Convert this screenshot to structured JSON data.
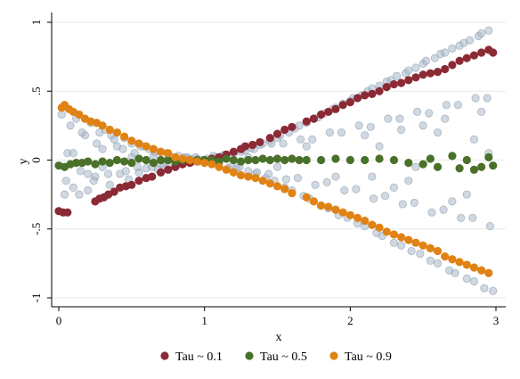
{
  "chart_data": {
    "type": "scatter",
    "title": "",
    "xlabel": "x",
    "ylabel": "y",
    "xlim": [
      0,
      3
    ],
    "ylim": [
      -1,
      1
    ],
    "x_ticks": [
      0,
      1,
      2,
      3
    ],
    "x_tick_labels": [
      "0",
      "1",
      "2",
      "3"
    ],
    "y_ticks": [
      -1,
      -0.5,
      0,
      0.5,
      1
    ],
    "y_tick_labels": [
      "-1",
      "-.5",
      "0",
      ".5",
      "1"
    ],
    "grid": "horizontal",
    "legend_position": "bottom",
    "background_points": {
      "color": "#a9b8c8",
      "x": [
        0.02,
        0.05,
        0.08,
        0.1,
        0.12,
        0.15,
        0.18,
        0.2,
        0.22,
        0.25,
        0.28,
        0.3,
        0.32,
        0.35,
        0.38,
        0.4,
        0.42,
        0.45,
        0.48,
        0.5,
        0.52,
        0.55,
        0.58,
        0.6,
        0.62,
        0.65,
        0.68,
        0.7,
        0.72,
        0.75,
        0.78,
        0.8,
        0.82,
        0.85,
        0.88,
        0.9,
        0.92,
        0.95,
        0.98,
        1.0,
        1.02,
        1.05,
        1.08,
        1.1,
        1.12,
        1.15,
        1.18,
        1.2,
        1.22,
        1.25,
        1.28,
        1.3,
        1.32,
        1.35,
        1.38,
        1.4,
        1.42,
        1.45,
        1.48,
        1.5,
        1.52,
        1.55,
        1.58,
        1.6,
        1.62,
        1.65,
        1.68,
        1.7,
        1.72,
        1.75,
        1.78,
        1.8,
        1.82,
        1.85,
        1.88,
        1.9,
        1.92,
        1.95,
        1.98,
        2.0,
        2.02,
        2.05,
        2.08,
        2.1,
        2.12,
        2.15,
        2.18,
        2.2,
        2.22,
        2.25,
        2.28,
        2.3,
        2.32,
        2.35,
        2.38,
        2.4,
        2.42,
        2.45,
        2.48,
        2.5,
        2.52,
        2.55,
        2.58,
        2.6,
        2.62,
        2.65,
        2.68,
        2.7,
        2.72,
        2.75,
        2.78,
        2.8,
        2.82,
        2.85,
        2.88,
        2.9,
        2.92,
        2.95,
        2.98,
        0.06,
        0.14,
        0.26,
        0.34,
        0.44,
        0.54,
        0.66,
        0.76,
        0.86,
        0.96,
        1.06,
        1.16,
        1.26,
        1.36,
        1.46,
        1.56,
        1.66,
        1.76,
        1.86,
        1.96,
        2.06,
        2.16,
        2.26,
        2.36,
        2.46,
        2.56,
        2.66,
        2.76,
        2.86,
        2.96,
        0.04,
        0.16,
        0.24,
        0.36,
        0.46,
        0.56,
        0.64,
        0.74,
        0.84,
        0.94,
        1.04,
        1.14,
        1.24,
        1.34,
        1.44,
        1.54,
        1.64,
        1.74,
        1.84,
        1.94,
        2.04,
        2.14,
        2.24,
        2.34,
        2.44,
        2.54,
        2.64,
        2.74,
        2.84,
        2.94,
        0.1,
        0.2,
        0.3,
        0.5,
        0.7,
        1.3,
        1.5,
        1.7,
        1.9,
        2.1,
        2.3,
        2.5,
        2.7,
        2.9,
        2.2,
        2.4,
        2.6,
        2.8,
        2.95,
        2.65,
        2.45,
        2.85,
        2.35,
        2.15
      ],
      "y": [
        0.33,
        -0.15,
        0.25,
        -0.2,
        0.3,
        -0.08,
        0.18,
        -0.22,
        0.27,
        -0.12,
        0.2,
        -0.05,
        0.22,
        -0.18,
        0.15,
        0.1,
        -0.1,
        0.16,
        -0.14,
        0.12,
        0.05,
        -0.09,
        0.1,
        -0.06,
        0.08,
        0.03,
        -0.07,
        0.06,
        -0.04,
        0.04,
        0.02,
        -0.03,
        0.03,
        -0.02,
        0.02,
        0.01,
        -0.01,
        0.01,
        0.0,
        0.0,
        0.01,
        -0.02,
        0.02,
        -0.03,
        0.03,
        0.04,
        -0.05,
        0.05,
        -0.06,
        0.06,
        0.07,
        -0.08,
        0.09,
        -0.1,
        0.11,
        0.12,
        -0.13,
        0.14,
        -0.15,
        0.16,
        0.18,
        -0.2,
        0.2,
        -0.22,
        0.23,
        0.25,
        -0.26,
        0.27,
        -0.28,
        0.3,
        0.31,
        -0.33,
        0.34,
        -0.35,
        0.37,
        0.38,
        -0.4,
        0.41,
        -0.42,
        0.43,
        0.45,
        -0.46,
        0.47,
        -0.48,
        0.5,
        0.52,
        -0.53,
        0.54,
        -0.55,
        0.57,
        0.58,
        -0.6,
        0.61,
        -0.62,
        0.63,
        0.65,
        -0.66,
        0.67,
        -0.68,
        0.7,
        0.72,
        -0.73,
        0.74,
        -0.75,
        0.77,
        0.78,
        -0.8,
        0.81,
        -0.82,
        0.83,
        0.85,
        -0.86,
        0.87,
        -0.88,
        0.9,
        0.92,
        -0.93,
        0.94,
        -0.95,
        0.05,
        -0.25,
        0.12,
        -0.1,
        0.08,
        -0.05,
        0.06,
        -0.04,
        0.02,
        -0.01,
        0.03,
        -0.06,
        0.08,
        -0.09,
        0.12,
        -0.14,
        0.15,
        -0.18,
        0.2,
        -0.22,
        0.25,
        -0.28,
        0.3,
        -0.32,
        0.35,
        -0.38,
        0.4,
        -0.42,
        0.45,
        -0.48,
        -0.25,
        0.2,
        -0.15,
        0.18,
        -0.08,
        0.1,
        -0.05,
        0.05,
        -0.03,
        0.02,
        -0.01,
        0.04,
        -0.05,
        0.08,
        -0.1,
        0.12,
        -0.13,
        0.15,
        -0.16,
        0.2,
        -0.21,
        0.24,
        -0.26,
        0.3,
        -0.31,
        0.34,
        -0.36,
        0.4,
        -0.42,
        0.45,
        0.05,
        -0.1,
        0.08,
        0.02,
        -0.03,
        0.02,
        -0.05,
        0.1,
        -0.12,
        0.18,
        -0.2,
        0.25,
        -0.3,
        0.35,
        0.1,
        -0.15,
        0.2,
        -0.25,
        0.05,
        0.3,
        -0.05,
        0.15,
        0.22,
        -0.12
      ]
    },
    "series": [
      {
        "name": "Tau ~ 0.1",
        "color": "#8b2a35",
        "x": [
          0.0,
          0.03,
          0.06,
          0.25,
          0.28,
          0.31,
          0.34,
          0.38,
          0.42,
          0.46,
          0.5,
          0.55,
          0.6,
          0.64,
          0.7,
          0.75,
          0.8,
          0.85,
          0.9,
          0.95,
          1.0,
          1.05,
          1.1,
          1.15,
          1.2,
          1.25,
          1.28,
          1.33,
          1.38,
          1.45,
          1.5,
          1.55,
          1.6,
          1.7,
          1.75,
          1.8,
          1.85,
          1.9,
          1.95,
          2.0,
          2.05,
          2.1,
          2.15,
          2.2,
          2.25,
          2.3,
          2.35,
          2.4,
          2.45,
          2.5,
          2.55,
          2.6,
          2.65,
          2.7,
          2.75,
          2.8,
          2.85,
          2.9,
          2.95,
          2.98
        ],
        "y": [
          -0.37,
          -0.38,
          -0.38,
          -0.3,
          -0.28,
          -0.27,
          -0.25,
          -0.23,
          -0.2,
          -0.19,
          -0.18,
          -0.15,
          -0.13,
          -0.12,
          -0.09,
          -0.07,
          -0.05,
          -0.03,
          -0.02,
          -0.01,
          0.0,
          0.01,
          0.02,
          0.04,
          0.06,
          0.08,
          0.1,
          0.11,
          0.13,
          0.16,
          0.19,
          0.22,
          0.24,
          0.28,
          0.3,
          0.33,
          0.35,
          0.37,
          0.4,
          0.42,
          0.45,
          0.47,
          0.48,
          0.5,
          0.53,
          0.55,
          0.56,
          0.58,
          0.6,
          0.62,
          0.63,
          0.64,
          0.66,
          0.69,
          0.72,
          0.74,
          0.76,
          0.78,
          0.8,
          0.78
        ]
      },
      {
        "name": "Tau ~ 0.5",
        "color": "#4a7129",
        "x": [
          0.0,
          0.04,
          0.08,
          0.12,
          0.16,
          0.2,
          0.25,
          0.3,
          0.35,
          0.4,
          0.45,
          0.5,
          0.55,
          0.6,
          0.65,
          0.7,
          0.75,
          0.8,
          0.85,
          0.9,
          0.95,
          1.0,
          1.05,
          1.1,
          1.15,
          1.2,
          1.25,
          1.3,
          1.35,
          1.4,
          1.45,
          1.5,
          1.55,
          1.6,
          1.65,
          1.7,
          1.8,
          1.9,
          2.0,
          2.1,
          2.2,
          2.3,
          2.4,
          2.5,
          2.55,
          2.6,
          2.7,
          2.75,
          2.8,
          2.85,
          2.9,
          2.95,
          2.98
        ],
        "y": [
          -0.04,
          -0.05,
          -0.03,
          -0.02,
          -0.02,
          -0.01,
          -0.03,
          -0.01,
          -0.02,
          0.0,
          -0.01,
          -0.02,
          0.01,
          0.0,
          -0.02,
          0.0,
          0.0,
          -0.01,
          0.0,
          0.0,
          0.0,
          0.0,
          0.0,
          -0.01,
          0.01,
          0.0,
          -0.01,
          0.0,
          0.0,
          0.01,
          0.0,
          0.01,
          0.0,
          0.01,
          0.0,
          0.0,
          0.0,
          0.01,
          0.0,
          0.0,
          0.01,
          0.0,
          -0.02,
          -0.03,
          0.01,
          -0.05,
          0.03,
          -0.06,
          0.0,
          -0.07,
          -0.05,
          0.02,
          -0.04
        ]
      },
      {
        "name": "Tau ~ 0.9",
        "color": "#e08214",
        "x": [
          0.02,
          0.04,
          0.07,
          0.1,
          0.14,
          0.18,
          0.22,
          0.26,
          0.3,
          0.35,
          0.4,
          0.45,
          0.5,
          0.55,
          0.6,
          0.65,
          0.7,
          0.75,
          0.8,
          0.85,
          0.9,
          0.95,
          1.0,
          1.05,
          1.1,
          1.15,
          1.2,
          1.25,
          1.3,
          1.35,
          1.4,
          1.45,
          1.5,
          1.55,
          1.6,
          1.7,
          1.75,
          1.8,
          1.85,
          1.9,
          1.95,
          2.0,
          2.05,
          2.1,
          2.15,
          2.2,
          2.25,
          2.3,
          2.35,
          2.4,
          2.45,
          2.5,
          2.55,
          2.6,
          2.65,
          2.7,
          2.75,
          2.8,
          2.85,
          2.9,
          2.95
        ],
        "y": [
          0.38,
          0.4,
          0.37,
          0.35,
          0.33,
          0.3,
          0.28,
          0.27,
          0.25,
          0.22,
          0.2,
          0.17,
          0.14,
          0.12,
          0.1,
          0.08,
          0.06,
          0.05,
          0.02,
          0.01,
          0.0,
          -0.01,
          -0.02,
          -0.03,
          -0.05,
          -0.07,
          -0.09,
          -0.11,
          -0.12,
          -0.13,
          -0.15,
          -0.17,
          -0.19,
          -0.21,
          -0.24,
          -0.27,
          -0.3,
          -0.33,
          -0.34,
          -0.36,
          -0.38,
          -0.4,
          -0.42,
          -0.44,
          -0.47,
          -0.49,
          -0.52,
          -0.54,
          -0.56,
          -0.58,
          -0.6,
          -0.62,
          -0.64,
          -0.66,
          -0.7,
          -0.72,
          -0.74,
          -0.76,
          -0.78,
          -0.8,
          -0.82
        ]
      }
    ]
  }
}
